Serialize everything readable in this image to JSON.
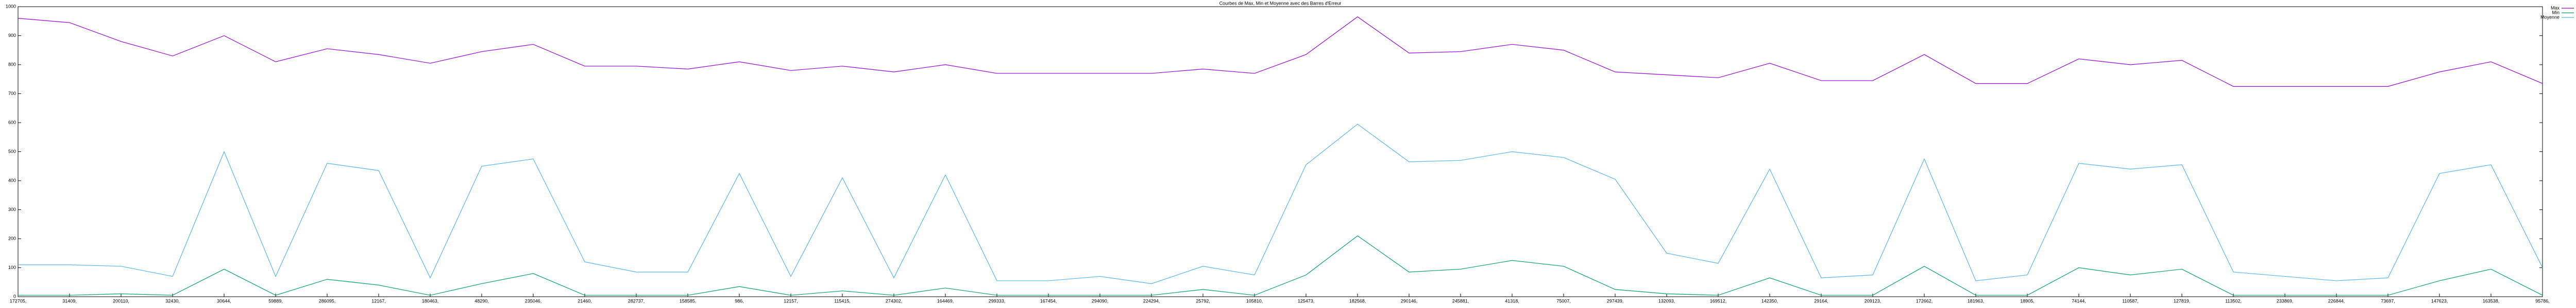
{
  "chart_data": {
    "type": "line",
    "title": "Courbes de Max, Min et Moyenne avec des Barres d'Erreur",
    "categories": [
      "172705,",
      "31409,",
      "200110,",
      "32430,",
      "30644,",
      "59889,",
      "286095,",
      "12167,",
      "180463,",
      "48290,",
      "235046,",
      "21460,",
      "282737,",
      "158585,",
      "986,",
      "12157,",
      "115415,",
      "274302,",
      "164469,",
      "299333,",
      "167454,",
      "294090,",
      "224294,",
      "25792,",
      "105810,",
      "125473,",
      "182568,",
      "290146,",
      "245881,",
      "41318,",
      "75007,",
      "297439,",
      "132093,",
      "169512,",
      "142350,",
      "29164,",
      "209123,",
      "172662,",
      "181963,",
      "18905,",
      "74144,",
      "110587,",
      "127819,",
      "113502,",
      "233869,",
      "226844,",
      "73697,",
      "147623,",
      "163538,",
      "95786,"
    ],
    "series": [
      {
        "name": "Max",
        "color": "#9400d3",
        "values": [
          960,
          945,
          880,
          830,
          900,
          810,
          855,
          835,
          805,
          845,
          870,
          795,
          795,
          785,
          810,
          780,
          795,
          775,
          800,
          770,
          770,
          770,
          770,
          785,
          770,
          835,
          965,
          840,
          845,
          870,
          850,
          775,
          765,
          755,
          805,
          745,
          745,
          835,
          735,
          735,
          820,
          800,
          815,
          725,
          725,
          725,
          725,
          775,
          810,
          735
        ]
      },
      {
        "name": "Min",
        "color": "#009e73",
        "values": [
          5,
          5,
          10,
          5,
          95,
          5,
          60,
          40,
          5,
          45,
          80,
          5,
          5,
          5,
          35,
          5,
          20,
          5,
          30,
          5,
          5,
          5,
          5,
          25,
          5,
          75,
          210,
          85,
          95,
          125,
          105,
          25,
          10,
          5,
          65,
          5,
          5,
          105,
          5,
          5,
          100,
          75,
          95,
          5,
          5,
          5,
          5,
          55,
          95,
          5
        ]
      },
      {
        "name": "Moyenne",
        "color": "#56b4e9",
        "values": [
          110,
          110,
          105,
          70,
          500,
          70,
          460,
          435,
          65,
          450,
          475,
          120,
          85,
          85,
          425,
          70,
          410,
          65,
          420,
          55,
          55,
          70,
          45,
          105,
          75,
          455,
          595,
          465,
          470,
          500,
          480,
          405,
          150,
          115,
          440,
          65,
          75,
          475,
          55,
          75,
          460,
          440,
          455,
          85,
          70,
          55,
          65,
          425,
          455,
          100
        ]
      }
    ],
    "ylim": [
      0,
      1000
    ],
    "yticks": [
      0,
      100,
      200,
      300,
      400,
      500,
      600,
      700,
      800,
      900,
      1000
    ],
    "legend": "outside-top-right"
  }
}
